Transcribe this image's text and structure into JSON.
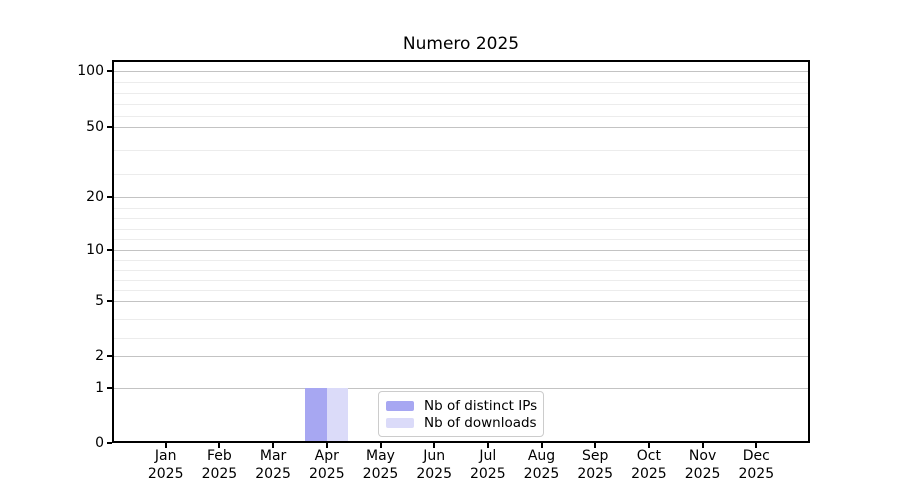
{
  "figure": {
    "title": "Numero 2025",
    "background": "#ffffff"
  },
  "chart_data": {
    "type": "bar",
    "title": "Numero 2025",
    "x_months": [
      "Jan",
      "Feb",
      "Mar",
      "Apr",
      "May",
      "Jun",
      "Jul",
      "Aug",
      "Sep",
      "Oct",
      "Nov",
      "Dec"
    ],
    "x_year": "2025",
    "series": [
      {
        "name": "Nb of distinct IPs",
        "color": "#a7a7f2",
        "values": [
          0,
          0,
          0,
          1,
          0,
          0,
          0,
          0,
          0,
          0,
          0,
          0
        ]
      },
      {
        "name": "Nb of downloads",
        "color": "#dbdbf9",
        "values": [
          0,
          0,
          0,
          1,
          0,
          0,
          0,
          0,
          0,
          0,
          0,
          0
        ]
      }
    ],
    "yaxis": {
      "scale": "quasi-log (piecewise linear between labeled ticks)",
      "major_ticks": [
        0,
        1,
        2,
        5,
        10,
        20,
        50,
        100
      ],
      "minor_gridlines": [
        3,
        4,
        6,
        7,
        8,
        9,
        12,
        14,
        16,
        18,
        30,
        40,
        60,
        70,
        80,
        90
      ],
      "ylim": [
        0,
        110
      ]
    },
    "legend": {
      "position": "inside-bottom-center",
      "items": [
        "Nb of distinct IPs",
        "Nb of downloads"
      ]
    },
    "grid": "horizontal"
  },
  "colors": {
    "axis": "#000000",
    "text": "#000000",
    "major_grid": "#c3c3c3",
    "minor_grid": "#ececec",
    "legend_border": "#cccccc"
  }
}
